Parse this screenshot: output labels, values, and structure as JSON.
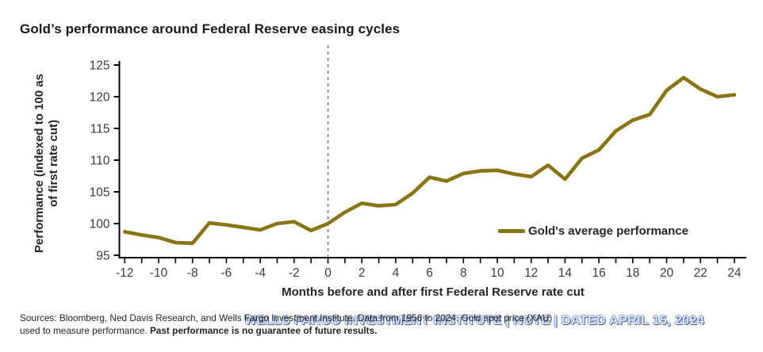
{
  "header": {
    "title": "Gold’s performance around Federal Reserve easing cycles"
  },
  "chart_data": {
    "type": "line",
    "title": "Gold’s performance around Federal Reserve easing cycles",
    "xlabel": "Months before and after first Federal Reserve rate cut",
    "ylabel": "Performance (indexed to 100 as of first rate cut)",
    "ylabel_lines": [
      "Performance (indexed to 100 as",
      "of first rate cut)"
    ],
    "x": [
      -12,
      -11,
      -10,
      -9,
      -8,
      -7,
      -6,
      -5,
      -4,
      -3,
      -2,
      -1,
      0,
      1,
      2,
      3,
      4,
      5,
      6,
      7,
      8,
      9,
      10,
      11,
      12,
      13,
      14,
      15,
      16,
      17,
      18,
      19,
      20,
      21,
      22,
      23,
      24
    ],
    "series": [
      {
        "name": "Gold's average performance",
        "color": "#8a7414",
        "values": [
          98.7,
          98.2,
          97.8,
          97.0,
          96.9,
          100.1,
          99.8,
          99.4,
          99.0,
          100.0,
          100.3,
          98.9,
          100.0,
          101.8,
          103.2,
          102.8,
          103.0,
          104.8,
          107.3,
          106.7,
          107.9,
          108.3,
          108.4,
          107.8,
          107.4,
          109.2,
          107.0,
          110.3,
          111.6,
          114.6,
          116.3,
          117.2,
          121.0,
          123.0,
          121.2,
          120.0,
          120.3
        ]
      }
    ],
    "y_ticks": [
      95,
      100,
      105,
      110,
      115,
      120,
      125
    ],
    "x_tick_labels": [
      -12,
      -10,
      -8,
      -6,
      -4,
      -2,
      0,
      2,
      4,
      6,
      8,
      10,
      12,
      14,
      16,
      18,
      20,
      22,
      24
    ],
    "xlim": [
      -12.4,
      24.7
    ],
    "ylim": [
      94.6,
      125.9
    ],
    "reference_line_x": 0,
    "grid": false,
    "legend_position": "lower right"
  },
  "footer": {
    "sources_line1": "Sources: Bloomberg, Ned Davis Research, and Wells Fargo Investment Institute. Data from 1956 to 2024. Gold spot price (XAU)",
    "sources_line2_regular": "used to measure performance. ",
    "sources_line2_bold": "Past performance is no guarantee of future results.",
    "watermark": "WELLS FARGO INVESTMENT INSTITUTE | NOTE | DATED APRIL 15, 2024"
  },
  "colors": {
    "line": "#8a7414",
    "axis": "#000000",
    "tick_label": "#3d3d3d",
    "reference_line": "#7b7b7b",
    "title_text": "#191919",
    "watermark_fill": "#e8f0fb",
    "watermark_edge": "#26468c"
  }
}
